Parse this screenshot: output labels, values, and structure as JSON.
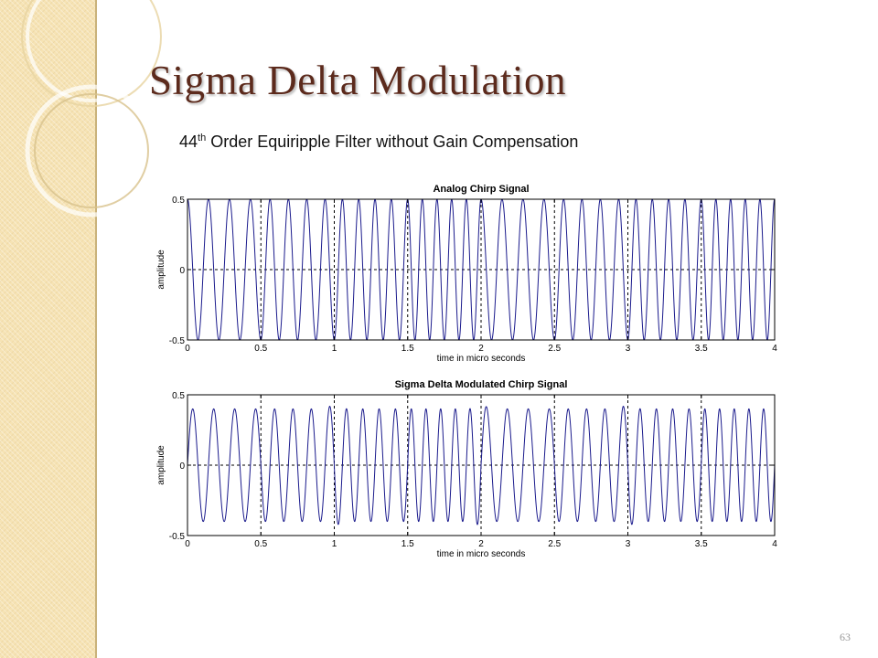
{
  "slide": {
    "title": "Sigma Delta Modulation",
    "subtitle_number": "44",
    "subtitle_sup": "th",
    "subtitle_rest": " Order Equiripple Filter without Gain Compensation",
    "page_number": "63"
  },
  "colors": {
    "sidebar": "#f6e3b4",
    "title": "#5c2a1c",
    "trace": "#1a1a8c"
  },
  "chart_data": [
    {
      "type": "line",
      "title": "Analog Chirp Signal",
      "xlabel": "time in micro seconds",
      "ylabel": "amplitude",
      "xlim": [
        0,
        4
      ],
      "ylim": [
        -0.5,
        0.5
      ],
      "xticks": [
        0,
        0.5,
        1,
        1.5,
        2,
        2.5,
        3,
        3.5,
        4
      ],
      "xtick_labels": [
        "0",
        "0.5",
        "1",
        "1.5",
        "2",
        "2.5",
        "3",
        "3.5",
        "4"
      ],
      "yticks": [
        0.5,
        0,
        -0.5
      ],
      "ytick_labels": [
        "0.5",
        "0",
        "-0.5"
      ],
      "grid": "dashed at x = 0.5, 1, 1.5, 2, 2.5, 3, 3.5 and y = 0",
      "series": [
        {
          "description": "Sinusoidal signal with amplitude 0.5; cycles per 0.5 microsecond interval read from the plot",
          "amplitude": 0.5,
          "cycles_per_interval": [
            3.5,
            4,
            4.5,
            5,
            3.5,
            4,
            4.5,
            5
          ]
        }
      ]
    },
    {
      "type": "line",
      "title": "Sigma Delta Modulated Chirp Signal",
      "xlabel": "time in micro seconds",
      "ylabel": "amplitude",
      "xlim": [
        0,
        4
      ],
      "ylim": [
        -0.5,
        0.5
      ],
      "xticks": [
        0,
        0.5,
        1,
        1.5,
        2,
        2.5,
        3,
        3.5,
        4
      ],
      "xtick_labels": [
        "0",
        "0.5",
        "1",
        "1.5",
        "2",
        "2.5",
        "3",
        "3.5",
        "4"
      ],
      "yticks": [
        0.5,
        0,
        -0.5
      ],
      "ytick_labels": [
        "0.5",
        "0",
        "-0.5"
      ],
      "grid": "dashed at x = 0.5, 1, 1.5, 2, 2.5, 3, 3.5 and y = 0",
      "series": [
        {
          "description": "Filtered sigma-delta output; amplitude about 0.4 (peaks to about 0.43 near x = 1, 2, 3)",
          "amplitude": 0.4,
          "peak_amplitude": 0.43,
          "cycles_per_interval": [
            3.5,
            4,
            4.5,
            5,
            3.5,
            4,
            4.5,
            5
          ]
        }
      ]
    }
  ]
}
